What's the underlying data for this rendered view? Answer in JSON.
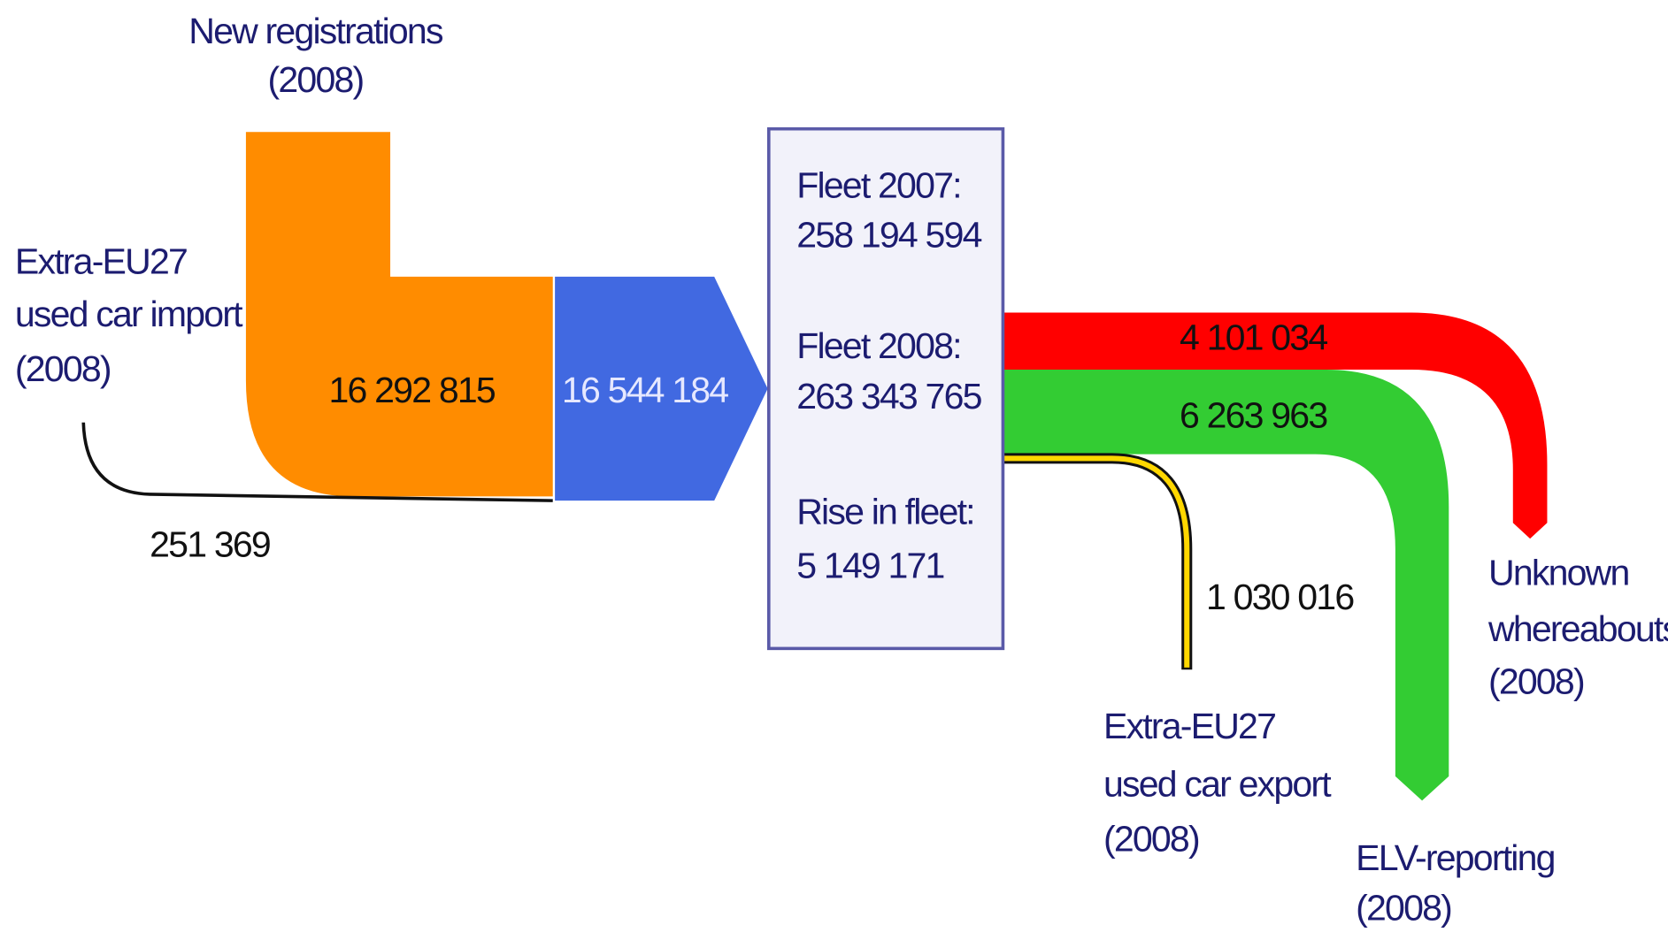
{
  "sources": [
    {
      "lines": [
        "New registrations",
        "(2008)"
      ],
      "value": "16 292 815"
    },
    {
      "lines": [
        "Extra-EU27",
        "used car import",
        "(2008)"
      ],
      "value": "251 369"
    }
  ],
  "inflow_total": "16 544 184",
  "fleet": {
    "lines": [
      "Fleet 2007:",
      "258 194 594",
      "Fleet 2008:",
      "263 343 765",
      "Rise in fleet:",
      "5 149 171"
    ]
  },
  "outflows": [
    {
      "lines": [
        "Unknown",
        "whereabouts",
        "(2008)"
      ],
      "value": "4 101 034"
    },
    {
      "lines": [
        "ELV-reporting",
        "(2008)"
      ],
      "value": "6 263 963"
    },
    {
      "lines": [
        "Extra-EU27",
        "used car export",
        "(2008)"
      ],
      "value": "1 030 016"
    }
  ]
}
